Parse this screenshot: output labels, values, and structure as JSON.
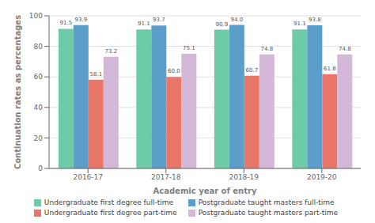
{
  "chart_data": {
    "type": "bar",
    "categories": [
      "2016-17",
      "2017-18",
      "2018-19",
      "2019-20"
    ],
    "series": [
      {
        "name": "Undergraduate first degree full-time",
        "color": "#6dcba8",
        "values": [
          91.5,
          91.1,
          90.9,
          91.1
        ],
        "value_labels": [
          "91.5",
          "91.1",
          "90.9",
          "91.1"
        ]
      },
      {
        "name": "Postgraduate taught masters full-time",
        "color": "#5b9ec9",
        "values": [
          93.9,
          93.7,
          94.0,
          93.8
        ],
        "value_labels": [
          "93.9",
          "93.7",
          "94.0",
          "93.8"
        ]
      },
      {
        "name": "Undergraduate first degree part-time",
        "color": "#e8776a",
        "values": [
          58.1,
          60.0,
          60.7,
          61.8
        ],
        "value_labels": [
          "58.1",
          "60.0",
          "60.7",
          "61.8"
        ]
      },
      {
        "name": "Postgraduate taught masters part-time",
        "color": "#d4b8d8",
        "values": [
          73.2,
          75.1,
          74.8,
          74.8
        ],
        "value_labels": [
          "73.2",
          "75.1",
          "74.8",
          "74.8"
        ]
      }
    ],
    "x_label": "Academic year of entry",
    "y_label": "Continuation rates as percentages",
    "ylim": [
      0,
      100
    ],
    "yticks": [
      0,
      20,
      40,
      60,
      80,
      100
    ],
    "grid": true,
    "legend": "bottom",
    "data_labels": true
  }
}
